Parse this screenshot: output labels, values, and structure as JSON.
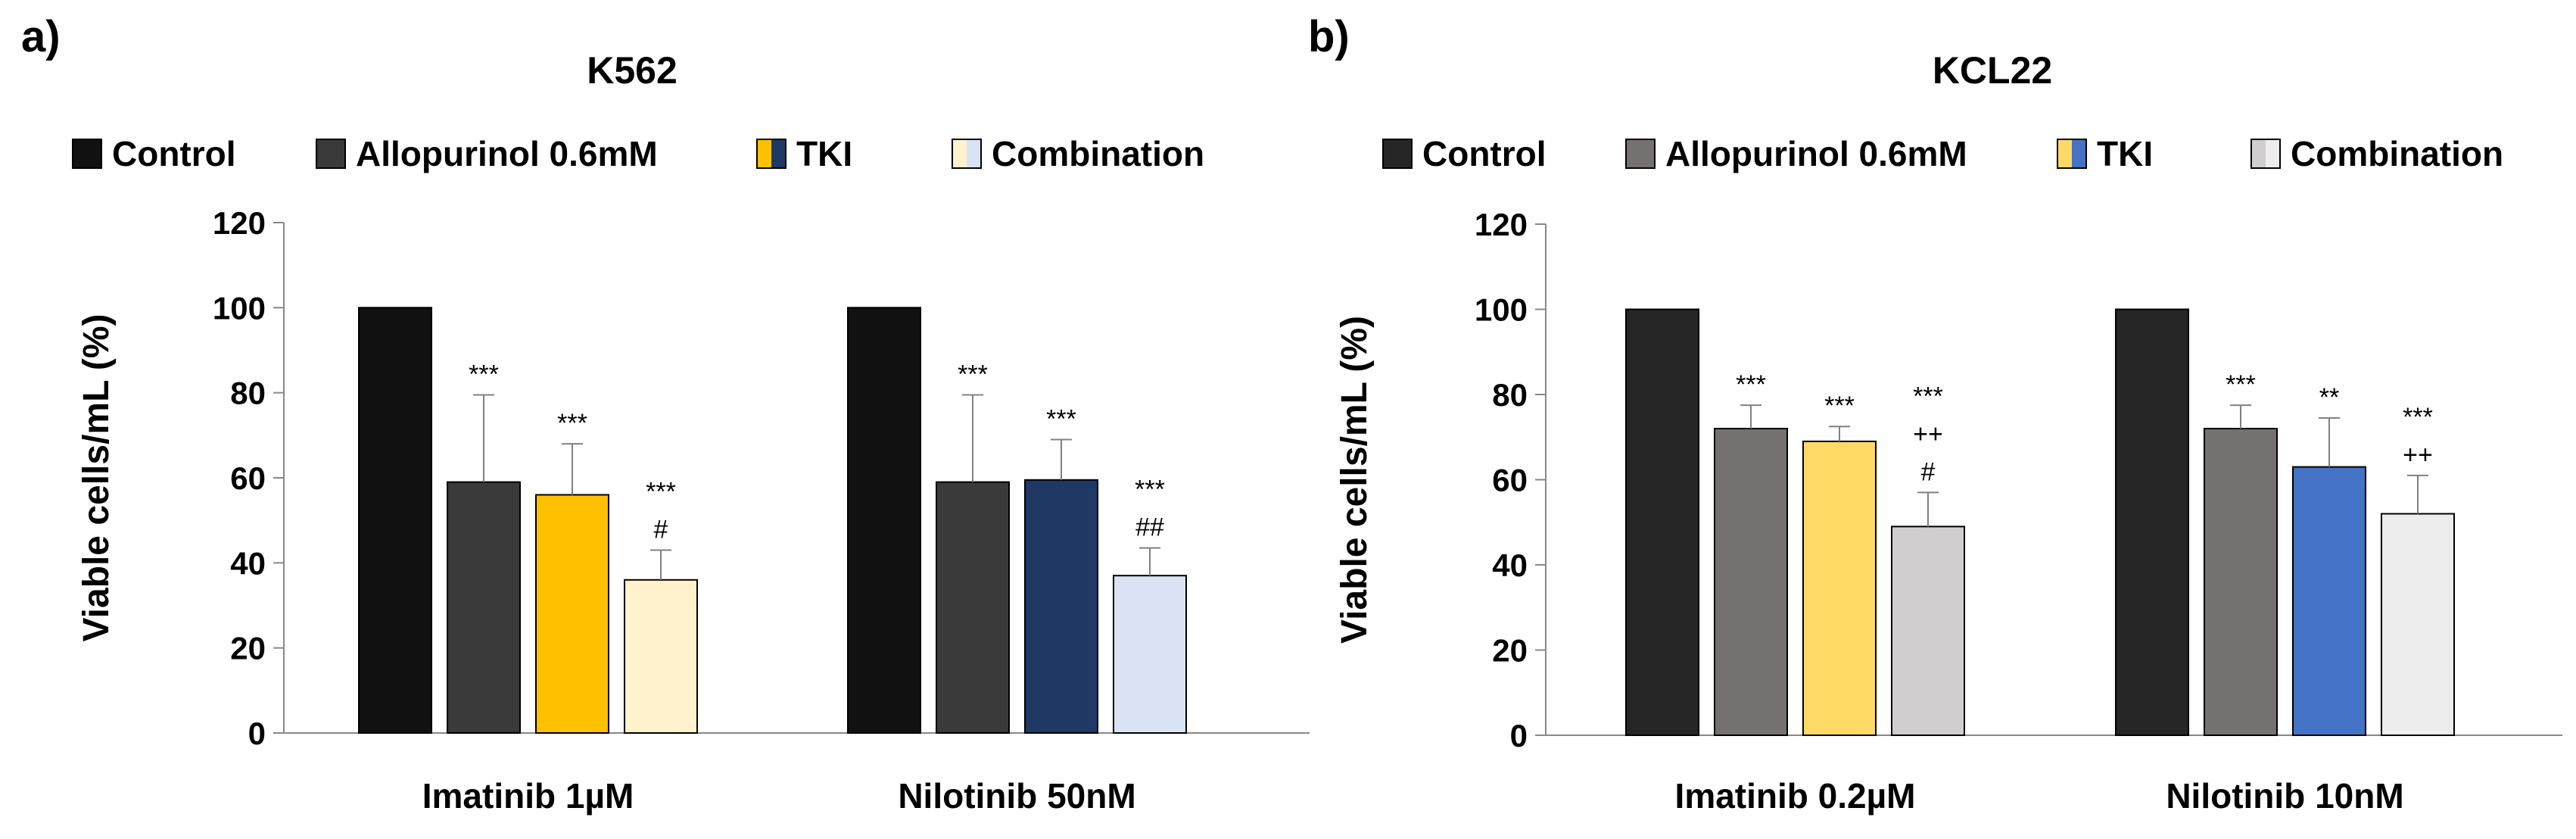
{
  "chart_data": [
    {
      "panel_label": "a)",
      "type": "bar",
      "title": "K562",
      "ylabel": "Viable cells/mL (%)",
      "xlabel": "",
      "ylim": [
        0,
        120
      ],
      "yticks": [
        0,
        20,
        40,
        60,
        80,
        100,
        120
      ],
      "legend_position": "top",
      "categories": [
        "Imatinib 1µM",
        "Nilotinib 50nM"
      ],
      "series": [
        {
          "name": "Control",
          "values": [
            100,
            100
          ],
          "errors": [
            0,
            0
          ],
          "colors": [
            "#111111",
            "#111111"
          ],
          "legend_colors": [
            "#111111"
          ],
          "annotations": [
            [],
            []
          ]
        },
        {
          "name": "Allopurinol 0.6mM",
          "values": [
            59,
            59
          ],
          "errors": [
            20.5,
            20.5
          ],
          "colors": [
            "#3a3a3a",
            "#3a3a3a"
          ],
          "legend_colors": [
            "#3a3a3a"
          ],
          "annotations": [
            [
              "***"
            ],
            [
              "***"
            ]
          ]
        },
        {
          "name": "TKI",
          "values": [
            56,
            59.5
          ],
          "errors": [
            12,
            9.5
          ],
          "colors": [
            "#ffc000",
            "#1f3864"
          ],
          "legend_colors": [
            "#ffc000",
            "#1f3864"
          ],
          "annotations": [
            [
              "***"
            ],
            [
              "***"
            ]
          ]
        },
        {
          "name": "Combination",
          "values": [
            36,
            37
          ],
          "errors": [
            7,
            6.5
          ],
          "colors": [
            "#fff2cc",
            "#dae3f3"
          ],
          "legend_colors": [
            "#fff2cc",
            "#dae3f3"
          ],
          "annotations": [
            [
              "***",
              "#"
            ],
            [
              "***",
              "##"
            ]
          ]
        }
      ]
    },
    {
      "panel_label": "b)",
      "type": "bar",
      "title": "KCL22",
      "ylabel": "Viable cells/mL (%)",
      "xlabel": "",
      "ylim": [
        0,
        120
      ],
      "yticks": [
        0,
        20,
        40,
        60,
        80,
        100,
        120
      ],
      "legend_position": "top",
      "categories": [
        "Imatinib 0.2µM",
        "Nilotinib 10nM"
      ],
      "series": [
        {
          "name": "Control",
          "values": [
            100,
            100
          ],
          "errors": [
            0,
            0
          ],
          "colors": [
            "#262626",
            "#262626"
          ],
          "legend_colors": [
            "#262626"
          ],
          "annotations": [
            [],
            []
          ]
        },
        {
          "name": "Allopurinol 0.6mM",
          "values": [
            72,
            72
          ],
          "errors": [
            5.5,
            5.5
          ],
          "colors": [
            "#767171",
            "#767171"
          ],
          "legend_colors": [
            "#767171"
          ],
          "annotations": [
            [
              "***"
            ],
            [
              "***"
            ]
          ]
        },
        {
          "name": "TKI",
          "values": [
            69,
            63
          ],
          "errors": [
            3.5,
            11.5
          ],
          "colors": [
            "#ffd966",
            "#4472c4"
          ],
          "legend_colors": [
            "#ffd966",
            "#4472c4"
          ],
          "annotations": [
            [
              "***"
            ],
            [
              "**"
            ]
          ]
        },
        {
          "name": "Combination",
          "values": [
            49,
            52
          ],
          "errors": [
            8,
            9
          ],
          "colors": [
            "#d0cece",
            "#ededed"
          ],
          "legend_colors": [
            "#d0cece",
            "#ededed"
          ],
          "annotations": [
            [
              "***",
              "++",
              "#"
            ],
            [
              "***",
              "++"
            ]
          ]
        }
      ]
    }
  ]
}
